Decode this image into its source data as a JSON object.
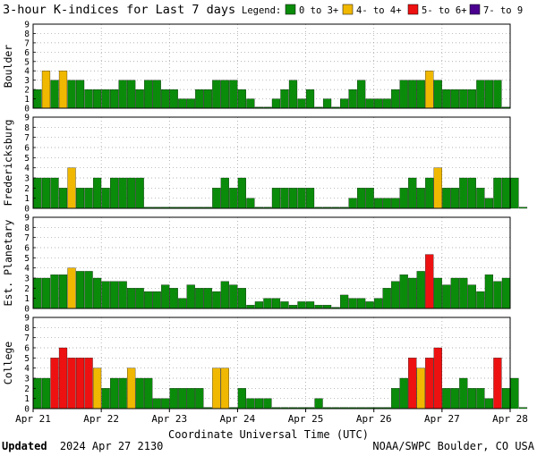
{
  "header": {
    "title": "3-hour K-indices for Last 7 days",
    "legend_label": "Legend:",
    "legend": [
      {
        "label": "0 to 3+",
        "color": "#0a8c0a"
      },
      {
        "label": "4- to 4+",
        "color": "#f0b800"
      },
      {
        "label": "5- to 6+",
        "color": "#ee1111"
      },
      {
        "label": "7- to 9",
        "color": "#4b0090"
      }
    ]
  },
  "footer": {
    "updated_label": "Updated",
    "updated_value": "2024 Apr 27 2130",
    "credit": "NOAA/SWPC Boulder, CO USA"
  },
  "chart_data": {
    "type": "bar",
    "title": "3-hour K-indices for Last 7 days",
    "xlabel": "Coordinate Universal Time (UTC)",
    "x_ticks": [
      "Apr 21",
      "Apr 22",
      "Apr 23",
      "Apr 24",
      "Apr 25",
      "Apr 26",
      "Apr 27",
      "Apr 28"
    ],
    "ylim": [
      0,
      9
    ],
    "y_ticks": [
      "0",
      "1",
      "2",
      "3",
      "4",
      "5",
      "6",
      "7",
      "8",
      "9"
    ],
    "bins_per_day": 8,
    "grid": true,
    "panels": [
      {
        "name": "Boulder",
        "values": [
          2,
          4,
          3,
          4,
          3,
          3,
          2,
          2,
          2,
          2,
          3,
          3,
          2,
          3,
          3,
          2,
          2,
          1,
          1,
          2,
          2,
          3,
          3,
          3,
          2,
          1,
          0,
          0,
          1,
          2,
          3,
          1,
          2,
          0,
          1,
          0,
          1,
          2,
          3,
          1,
          1,
          1,
          2,
          3,
          3,
          3,
          4,
          3,
          2,
          2,
          2,
          2,
          3,
          3,
          3,
          0
        ]
      },
      {
        "name": "Fredericksburg",
        "values": [
          3,
          3,
          3,
          2,
          4,
          2,
          2,
          3,
          2,
          3,
          3,
          3,
          3,
          0,
          0,
          0,
          0,
          0,
          0,
          0,
          0,
          2,
          3,
          2,
          3,
          1,
          0,
          0,
          2,
          2,
          2,
          2,
          2,
          0,
          0,
          0,
          0,
          1,
          2,
          2,
          1,
          1,
          1,
          2,
          3,
          2,
          3,
          4,
          2,
          2,
          3,
          3,
          2,
          1,
          3,
          3,
          3,
          0
        ]
      },
      {
        "name": "Est. Planetary",
        "values": [
          3,
          3,
          3.33,
          3.33,
          4,
          3.67,
          3.67,
          3,
          2.67,
          2.67,
          2.67,
          2,
          2,
          1.67,
          1.67,
          2.33,
          2,
          1,
          2.33,
          2,
          2,
          1.67,
          2.67,
          2.33,
          2,
          0.33,
          0.67,
          1,
          1,
          0.67,
          0.33,
          0.67,
          0.67,
          0.33,
          0.33,
          0,
          1.33,
          1,
          1,
          0.67,
          1,
          2,
          2.67,
          3.33,
          3,
          3.67,
          5.33,
          3,
          2.33,
          3,
          3,
          2.33,
          1.67,
          3.33,
          2.67,
          3
        ]
      },
      {
        "name": "College",
        "values": [
          3,
          3,
          5,
          6,
          5,
          5,
          5,
          4,
          2,
          3,
          3,
          4,
          3,
          3,
          1,
          1,
          2,
          2,
          2,
          2,
          0,
          4,
          4,
          0,
          2,
          1,
          1,
          1,
          0,
          0,
          0,
          0,
          0,
          1,
          0,
          0,
          0,
          0,
          0,
          0,
          0,
          0,
          2,
          3,
          5,
          4,
          5,
          6,
          2,
          2,
          3,
          2,
          2,
          1,
          5,
          2,
          3,
          0
        ]
      }
    ]
  }
}
